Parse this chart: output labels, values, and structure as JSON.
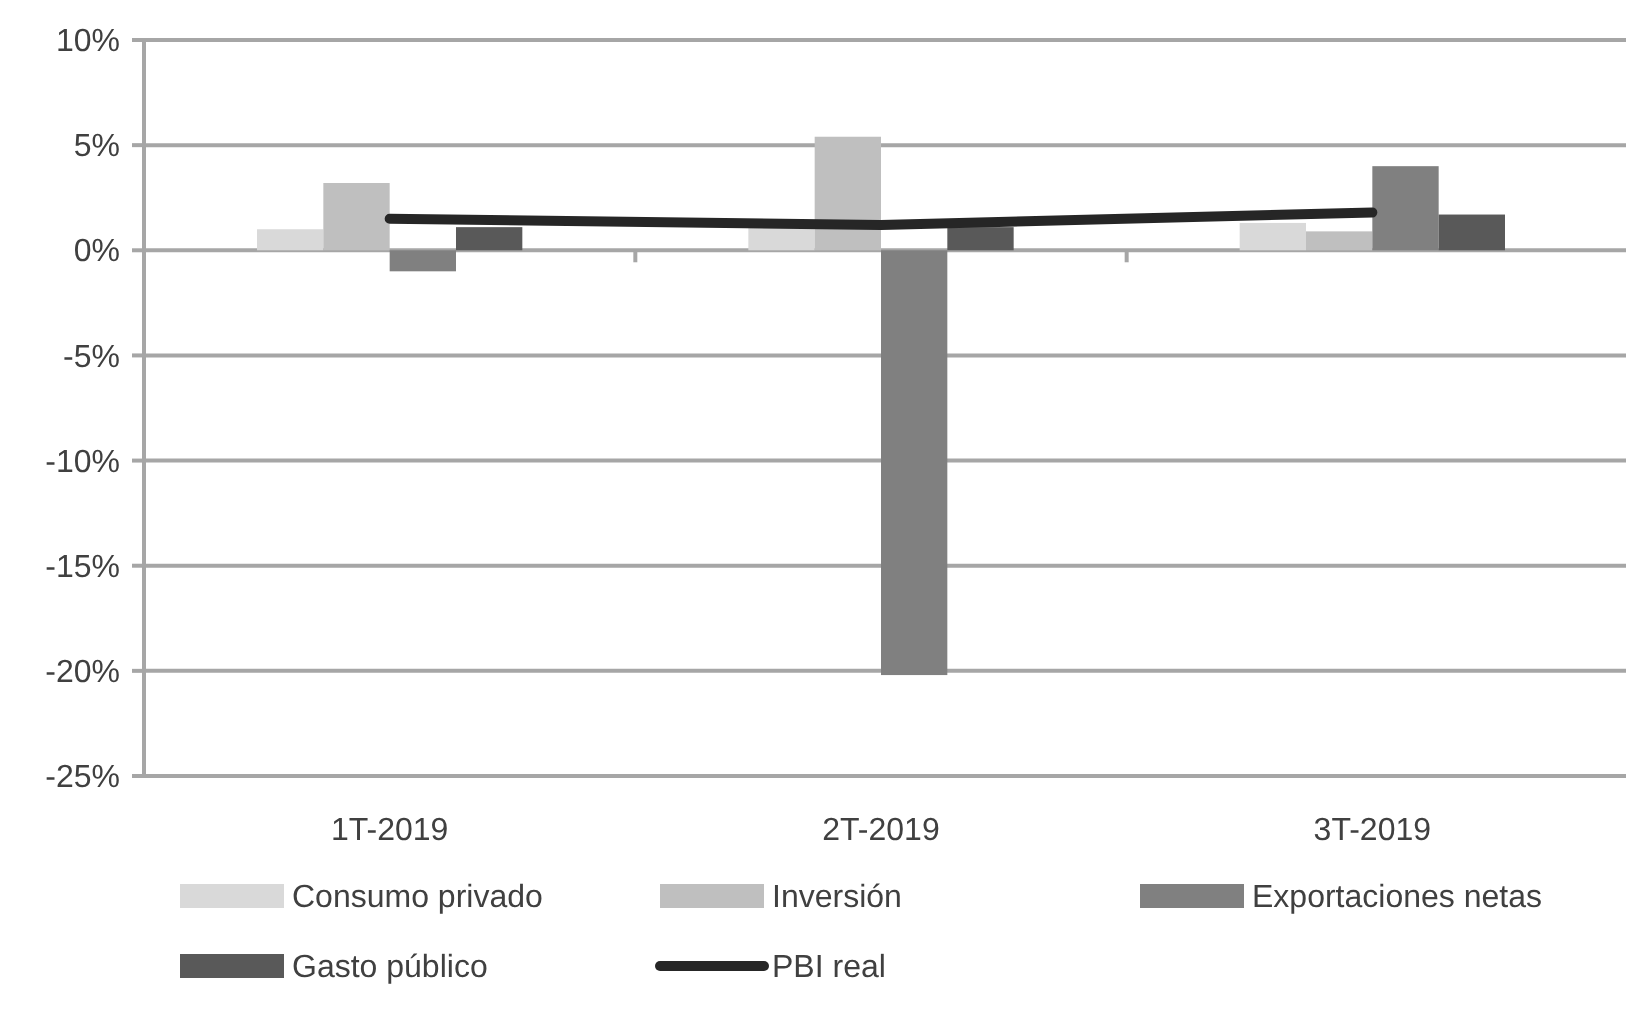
{
  "chart_data": {
    "type": "bar",
    "categories": [
      "1T-2019",
      "2T-2019",
      "3T-2019"
    ],
    "series": [
      {
        "name": "Consumo privado",
        "color": "#d9d9d9",
        "values": [
          1.0,
          1.3,
          1.3
        ]
      },
      {
        "name": "Inversión",
        "color": "#bfbfbf",
        "values": [
          3.2,
          5.4,
          0.9
        ]
      },
      {
        "name": "Exportaciones netas",
        "color": "#808080",
        "values": [
          -1.0,
          -20.2,
          4.0
        ]
      },
      {
        "name": "Gasto público",
        "color": "#595959",
        "values": [
          1.1,
          1.1,
          1.7
        ]
      },
      {
        "name": "PBI real",
        "color": "#262626",
        "type": "line",
        "values": [
          1.5,
          1.2,
          1.8
        ]
      }
    ],
    "ylim": [
      -25,
      10
    ],
    "yticks": [
      {
        "value": -25,
        "label": "-25%"
      },
      {
        "value": -20,
        "label": "-20%"
      },
      {
        "value": -15,
        "label": "-15%"
      },
      {
        "value": -10,
        "label": "-10%"
      },
      {
        "value": -5,
        "label": "-5%"
      },
      {
        "value": 0,
        "label": "0%"
      },
      {
        "value": 5,
        "label": "5%"
      },
      {
        "value": 10,
        "label": "10%"
      }
    ],
    "grid": "y",
    "legend": "bottom",
    "marker": "none"
  }
}
